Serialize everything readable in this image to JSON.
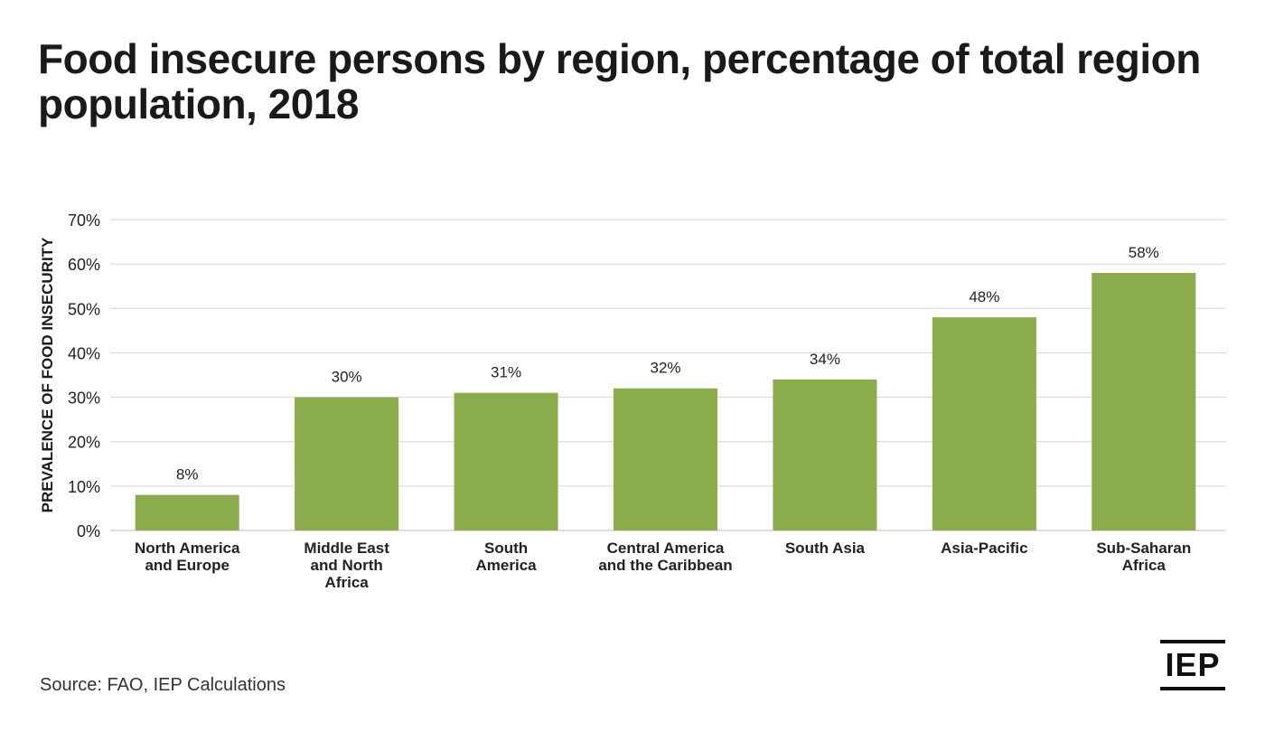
{
  "title": "Food insecure persons by region, percentage of total region population, 2018",
  "source": "Source: FAO, IEP Calculations",
  "logo": "IEP",
  "colors": {
    "bar": "#8aac4a",
    "grid": "#d4d4d4",
    "text": "#222222"
  },
  "chart_data": {
    "type": "bar",
    "categories": [
      [
        "North America",
        "and Europe"
      ],
      [
        "Middle East",
        "and North",
        "Africa"
      ],
      [
        "South",
        "America"
      ],
      [
        "Central America",
        "and the Caribbean"
      ],
      [
        "South Asia"
      ],
      [
        "Asia-Pacific"
      ],
      [
        "Sub-Saharan",
        "Africa"
      ]
    ],
    "values": [
      8,
      30,
      31,
      32,
      34,
      48,
      58
    ],
    "data_labels": [
      "8%",
      "30%",
      "31%",
      "32%",
      "34%",
      "48%",
      "58%"
    ],
    "ylabel": "PREVALENCE OF FOOD INSECURITY",
    "ylim": [
      0,
      70
    ],
    "yticks": [
      "0%",
      "10%",
      "20%",
      "30%",
      "40%",
      "50%",
      "60%",
      "70%"
    ],
    "grid": true
  }
}
